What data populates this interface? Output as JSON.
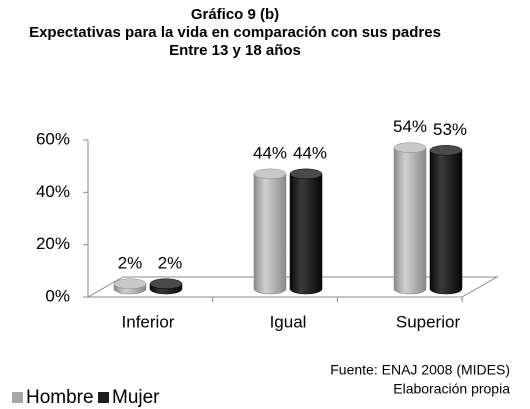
{
  "chart_data": {
    "type": "bar3d",
    "title": "Gráfico 9 (b)",
    "subtitle": [
      "Expectativas para la vida en  comparación con sus padres",
      "Entre 13 y 18 años"
    ],
    "categories": [
      "Inferior",
      "Igual",
      "Superior"
    ],
    "series": [
      {
        "name": "Hombre",
        "color": "#a6a6a6",
        "values": [
          2,
          44,
          54
        ],
        "value_labels": [
          "2%",
          "44%",
          "54%"
        ]
      },
      {
        "name": "Mujer",
        "color": "#1e1e1e",
        "values": [
          2,
          44,
          53
        ],
        "value_labels": [
          "2%",
          "44%",
          "53%"
        ]
      }
    ],
    "ylim": [
      0,
      60
    ],
    "yticks": [
      {
        "value": 0,
        "label": "0%"
      },
      {
        "value": 20,
        "label": "20%"
      },
      {
        "value": 40,
        "label": "40%"
      },
      {
        "value": 60,
        "label": "60%"
      }
    ],
    "grid": false,
    "legend": "bottom-left",
    "notes": [
      "Fuente: ENAJ 2008 (MIDES)",
      "Elaboración propia"
    ]
  }
}
